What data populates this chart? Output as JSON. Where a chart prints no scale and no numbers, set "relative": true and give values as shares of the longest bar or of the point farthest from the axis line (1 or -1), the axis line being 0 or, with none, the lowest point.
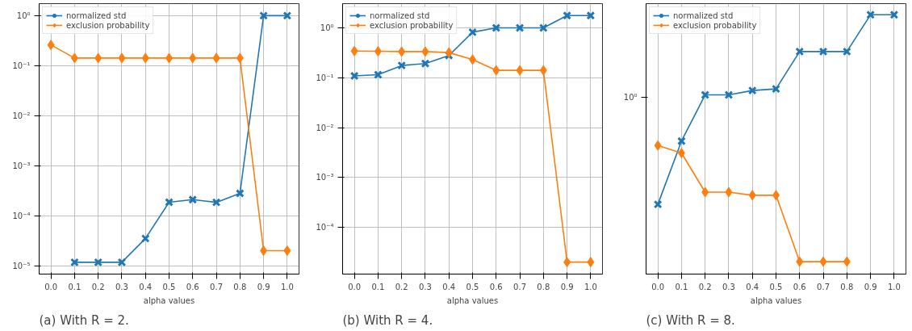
{
  "chart_data": [
    {
      "type": "line",
      "xlabel": "alpha values",
      "annotations": [
        "(a) With R = 2."
      ],
      "log": "y",
      "grid": true,
      "legend": "top left",
      "x": [
        0.0,
        0.1,
        0.2,
        0.3,
        0.4,
        0.5,
        0.6,
        0.7,
        0.8,
        0.9,
        1.0
      ],
      "xlim": [
        -0.05,
        1.05
      ],
      "xticks": [
        {
          "value": 0.0,
          "label": "0.0"
        },
        {
          "value": 0.1,
          "label": "0.1"
        },
        {
          "value": 0.2,
          "label": "0.2"
        },
        {
          "value": 0.3,
          "label": "0.3"
        },
        {
          "value": 0.4,
          "label": "0.4"
        },
        {
          "value": 0.5,
          "label": "0.5"
        },
        {
          "value": 0.6,
          "label": "0.6"
        },
        {
          "value": 0.7,
          "label": "0.7"
        },
        {
          "value": 0.8,
          "label": "0.8"
        },
        {
          "value": 0.9,
          "label": "0.9"
        },
        {
          "value": 1.0,
          "label": "1.0"
        }
      ],
      "ylim": [
        6.8e-06,
        1.74
      ],
      "yticks": [
        {
          "value": 1e-05,
          "label": "10⁻⁵"
        },
        {
          "value": 0.0001,
          "label": "10⁻⁴"
        },
        {
          "value": 0.001,
          "label": "10⁻³"
        },
        {
          "value": 0.01,
          "label": "10⁻²"
        },
        {
          "value": 0.1,
          "label": "10⁻¹"
        },
        {
          "value": 1,
          "label": "10⁰"
        }
      ],
      "series": [
        {
          "name": "normalized std",
          "color": "#1f77b4",
          "marker": "cross",
          "values": [
            null,
            1.17e-05,
            1.17e-05,
            1.17e-05,
            3.5e-05,
            0.000186,
            0.00021,
            0.000185,
            0.00028,
            1.0,
            1.0
          ]
        },
        {
          "name": "exclusion probability",
          "color": "#ff7f0e",
          "marker": "diamond",
          "values": [
            0.26,
            0.142,
            0.142,
            0.142,
            0.142,
            0.142,
            0.142,
            0.142,
            0.142,
            2e-05,
            2e-05
          ]
        }
      ]
    },
    {
      "type": "line",
      "xlabel": "alpha values",
      "annotations": [
        "(b) With R = 4."
      ],
      "log": "y",
      "grid": true,
      "legend": "top left",
      "x": [
        0.0,
        0.1,
        0.2,
        0.3,
        0.4,
        0.5,
        0.6,
        0.7,
        0.8,
        0.9,
        1.0
      ],
      "xlim": [
        -0.05,
        1.05
      ],
      "xticks": [
        {
          "value": 0.0,
          "label": "0.0"
        },
        {
          "value": 0.1,
          "label": "0.1"
        },
        {
          "value": 0.2,
          "label": "0.2"
        },
        {
          "value": 0.3,
          "label": "0.3"
        },
        {
          "value": 0.4,
          "label": "0.4"
        },
        {
          "value": 0.5,
          "label": "0.5"
        },
        {
          "value": 0.6,
          "label": "0.6"
        },
        {
          "value": 0.7,
          "label": "0.7"
        },
        {
          "value": 0.8,
          "label": "0.8"
        },
        {
          "value": 0.9,
          "label": "0.9"
        },
        {
          "value": 1.0,
          "label": "1.0"
        }
      ],
      "ylim": [
        1.15e-05,
        3.07
      ],
      "yticks": [
        {
          "value": 0.0001,
          "label": "10⁻⁴"
        },
        {
          "value": 0.001,
          "label": "10⁻³"
        },
        {
          "value": 0.01,
          "label": "10⁻²"
        },
        {
          "value": 0.1,
          "label": "10⁻¹"
        },
        {
          "value": 1,
          "label": "10⁰"
        }
      ],
      "series": [
        {
          "name": "normalized std",
          "color": "#1f77b4",
          "marker": "cross",
          "values": [
            0.109,
            0.115,
            0.176,
            0.193,
            0.28,
            0.82,
            1.0,
            1.0,
            1.0,
            1.77,
            1.77
          ]
        },
        {
          "name": "exclusion probability",
          "color": "#ff7f0e",
          "marker": "diamond",
          "values": [
            0.343,
            0.34,
            0.335,
            0.335,
            0.32,
            0.232,
            0.141,
            0.141,
            0.141,
            2e-05,
            2e-05
          ]
        }
      ]
    },
    {
      "type": "line",
      "xlabel": "alpha values",
      "annotations": [
        "10⁰",
        "(c) With R = 8."
      ],
      "grid": true,
      "legend": "top left",
      "relative": true,
      "x": [
        0.0,
        0.1,
        0.2,
        0.3,
        0.4,
        0.5,
        0.6,
        0.7,
        0.8,
        0.9,
        1.0
      ],
      "xlim": [
        -0.05,
        1.05
      ],
      "xticks": [
        {
          "value": 0.0,
          "label": "0.0"
        },
        {
          "value": 0.1,
          "label": "0.1"
        },
        {
          "value": 0.2,
          "label": "0.2"
        },
        {
          "value": 0.3,
          "label": "0.3"
        },
        {
          "value": 0.4,
          "label": "0.4"
        },
        {
          "value": 0.5,
          "label": "0.5"
        },
        {
          "value": 0.6,
          "label": "0.6"
        },
        {
          "value": 0.7,
          "label": "0.7"
        },
        {
          "value": 0.8,
          "label": "0.8"
        },
        {
          "value": 0.9,
          "label": "0.9"
        },
        {
          "value": 1.0,
          "label": "1.0"
        }
      ],
      "series": [
        {
          "name": "normalized std",
          "color": "#1f77b4",
          "marker": "cross",
          "values": [
            0.269,
            0.513,
            0.691,
            0.691,
            0.708,
            0.714,
            0.858,
            0.858,
            0.858,
            1,
            1
          ]
        },
        {
          "name": "exclusion probability",
          "color": "#ff7f0e",
          "marker": "diamond",
          "values": [
            0.496,
            0.467,
            0.316,
            0.316,
            0.304,
            0.304,
            0.048,
            0.048,
            0.048,
            null,
            null
          ]
        }
      ]
    }
  ]
}
